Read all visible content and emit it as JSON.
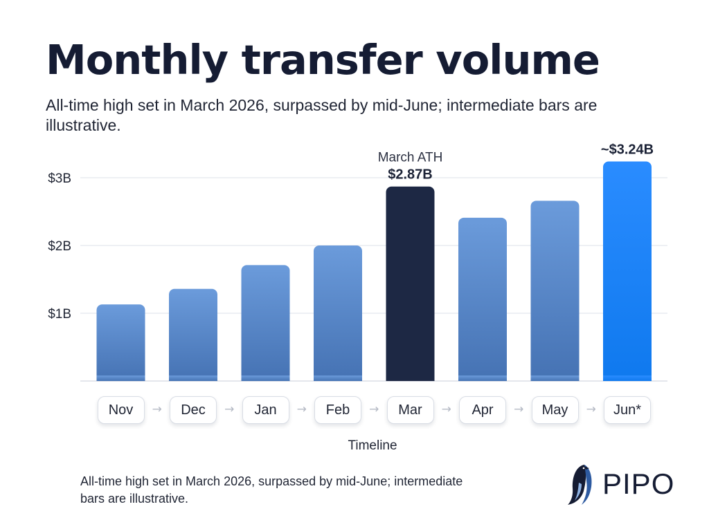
{
  "title": "Monthly transfer volume",
  "subtitle": "All-time high set in March 2026, surpassed by mid-June; intermediate bars are illustrative.",
  "footnote": "All-time high set in March 2026, surpassed by mid-June; intermediate bars are illustrative.",
  "brand": {
    "name": "PIPO",
    "icon": "penguin-logo-icon"
  },
  "colors": {
    "bar_default": "#4f83c8",
    "bar_highlight": "#1d2844",
    "bar_latest": "#1a82f5",
    "title": "#151c33",
    "grid": "#e4e7ee"
  },
  "chart_data": {
    "type": "bar",
    "title": "Monthly transfer volume",
    "xlabel": "Timeline",
    "ylabel": "",
    "categories": [
      "Nov",
      "Dec",
      "Jan",
      "Feb",
      "Mar",
      "Apr",
      "May",
      "Jun*"
    ],
    "values": [
      1.13,
      1.36,
      1.71,
      2.0,
      2.87,
      2.41,
      2.66,
      3.24
    ],
    "unit": "billion USD",
    "ylim": [
      0,
      3.24
    ],
    "yticks": [
      {
        "value": 1,
        "label": "$1B"
      },
      {
        "value": 2,
        "label": "$2B"
      },
      {
        "value": 3,
        "label": "$3B"
      }
    ],
    "grid": true,
    "highlight": {
      "index": 4,
      "label": "March ATH",
      "value_label": "$2.87B"
    },
    "latest": {
      "index": 7,
      "value_label": "~$3.24B"
    },
    "x_axis_style": "timeline pills connected by arrows"
  }
}
